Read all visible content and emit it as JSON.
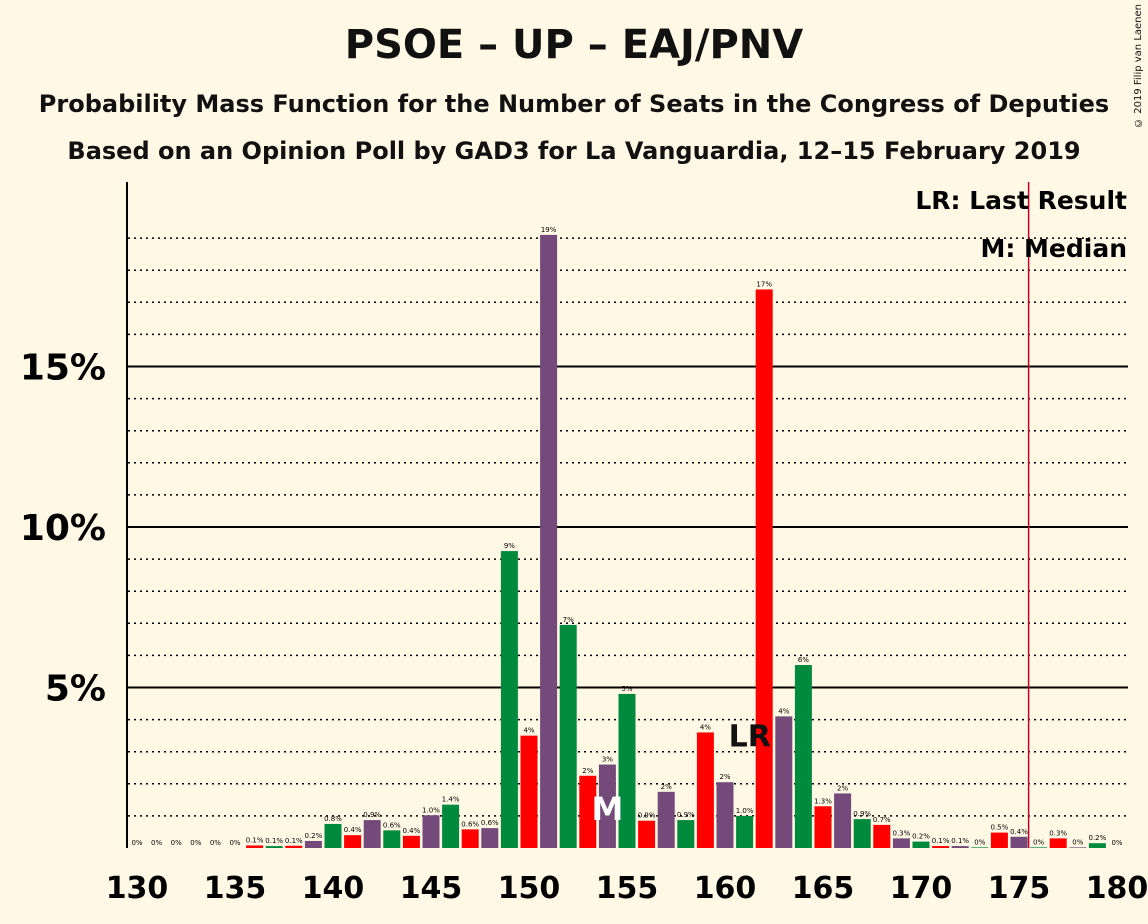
{
  "title": "PSOE – UP – EAJ/PNV",
  "subtitle1": "Probability Mass Function for the Number of Seats in the Congress of Deputies",
  "subtitle2": "Based on an Opinion Poll by GAD3 for La Vanguardia, 12–15 February 2019",
  "copyright": "© 2019 Filip van Laenen",
  "legend": {
    "lr": "LR: Last Result",
    "m": "M: Median"
  },
  "colors": {
    "red": "#ff0000",
    "green": "#008a3e",
    "purple": "#744a7b",
    "background": "#fff8e4",
    "majority_line": "#c0002a"
  },
  "chart_data": {
    "type": "bar",
    "xlabel": "",
    "ylabel": "",
    "ylim": [
      0,
      20.7
    ],
    "y_ticks": [
      {
        "value": 5,
        "label": "5%"
      },
      {
        "value": 10,
        "label": "10%"
      },
      {
        "value": 15,
        "label": "15%"
      }
    ],
    "x_ticks": [
      130,
      135,
      140,
      145,
      150,
      155,
      160,
      165,
      170,
      175,
      180
    ],
    "median": 154,
    "last_result": 161,
    "last_result_label": "LR",
    "median_label": "M",
    "majority_line": 176,
    "bars": [
      {
        "x": 130,
        "v": 0,
        "label": "0%",
        "c": "red"
      },
      {
        "x": 131,
        "v": 0,
        "label": "0%",
        "c": "green"
      },
      {
        "x": 132,
        "v": 0,
        "label": "0%",
        "c": "purple"
      },
      {
        "x": 133,
        "v": 0,
        "label": "0%",
        "c": "red"
      },
      {
        "x": 134,
        "v": 0,
        "label": "0%",
        "c": "green"
      },
      {
        "x": 135,
        "v": 0,
        "label": "0%",
        "c": "purple"
      },
      {
        "x": 136,
        "v": 0.08,
        "label": "0.1%",
        "c": "red"
      },
      {
        "x": 137,
        "v": 0.06,
        "label": "0.1%",
        "c": "green"
      },
      {
        "x": 138,
        "v": 0.07,
        "label": "0.1%",
        "c": "red"
      },
      {
        "x": 139,
        "v": 0.22,
        "label": "0.2%",
        "c": "purple"
      },
      {
        "x": 140,
        "v": 0.75,
        "label": "0.8%",
        "c": "green"
      },
      {
        "x": 141,
        "v": 0.4,
        "label": "0.4%",
        "c": "red"
      },
      {
        "x": 142,
        "v": 0.87,
        "label": "0.9%",
        "c": "purple"
      },
      {
        "x": 143,
        "v": 0.55,
        "label": "0.6%",
        "c": "green"
      },
      {
        "x": 144,
        "v": 0.38,
        "label": "0.4%",
        "c": "red"
      },
      {
        "x": 145,
        "v": 1.02,
        "label": "1.0%",
        "c": "purple"
      },
      {
        "x": 146,
        "v": 1.35,
        "label": "1.4%",
        "c": "green"
      },
      {
        "x": 147,
        "v": 0.58,
        "label": "0.6%",
        "c": "red"
      },
      {
        "x": 148,
        "v": 0.62,
        "label": "0.6%",
        "c": "purple"
      },
      {
        "x": 149,
        "v": 9.25,
        "label": "9%",
        "c": "green"
      },
      {
        "x": 150,
        "v": 3.5,
        "label": "4%",
        "c": "red"
      },
      {
        "x": 151,
        "v": 19.1,
        "label": "19%",
        "c": "purple"
      },
      {
        "x": 152,
        "v": 6.95,
        "label": "7%",
        "c": "green"
      },
      {
        "x": 153,
        "v": 2.25,
        "label": "2%",
        "c": "red"
      },
      {
        "x": 154,
        "v": 2.6,
        "label": "3%",
        "c": "purple"
      },
      {
        "x": 155,
        "v": 4.8,
        "label": "5%",
        "c": "green"
      },
      {
        "x": 156,
        "v": 0.85,
        "label": "0.9%",
        "c": "red"
      },
      {
        "x": 157,
        "v": 1.75,
        "label": "2%",
        "c": "purple"
      },
      {
        "x": 158,
        "v": 0.87,
        "label": "0.9%",
        "c": "green"
      },
      {
        "x": 159,
        "v": 3.6,
        "label": "4%",
        "c": "red"
      },
      {
        "x": 160,
        "v": 2.05,
        "label": "2%",
        "c": "purple"
      },
      {
        "x": 161,
        "v": 1.0,
        "label": "1.0%",
        "c": "green"
      },
      {
        "x": 162,
        "v": 17.4,
        "label": "17%",
        "c": "red"
      },
      {
        "x": 163,
        "v": 4.1,
        "label": "4%",
        "c": "purple"
      },
      {
        "x": 164,
        "v": 5.7,
        "label": "6%",
        "c": "green"
      },
      {
        "x": 165,
        "v": 1.3,
        "label": "1.3%",
        "c": "red"
      },
      {
        "x": 166,
        "v": 1.7,
        "label": "2%",
        "c": "purple"
      },
      {
        "x": 167,
        "v": 0.9,
        "label": "0.9%",
        "c": "green"
      },
      {
        "x": 168,
        "v": 0.72,
        "label": "0.7%",
        "c": "red"
      },
      {
        "x": 169,
        "v": 0.3,
        "label": "0.3%",
        "c": "purple"
      },
      {
        "x": 170,
        "v": 0.2,
        "label": "0.2%",
        "c": "green"
      },
      {
        "x": 171,
        "v": 0.06,
        "label": "0.1%",
        "c": "red"
      },
      {
        "x": 172,
        "v": 0.06,
        "label": "0.1%",
        "c": "purple"
      },
      {
        "x": 173,
        "v": 0.02,
        "label": "0%",
        "c": "green"
      },
      {
        "x": 174,
        "v": 0.48,
        "label": "0.5%",
        "c": "red"
      },
      {
        "x": 175,
        "v": 0.35,
        "label": "0.4%",
        "c": "purple"
      },
      {
        "x": 176,
        "v": 0.02,
        "label": "0%",
        "c": "green"
      },
      {
        "x": 177,
        "v": 0.3,
        "label": "0.3%",
        "c": "red"
      },
      {
        "x": 178,
        "v": 0.02,
        "label": "0%",
        "c": "purple"
      },
      {
        "x": 179,
        "v": 0.15,
        "label": "0.2%",
        "c": "green"
      },
      {
        "x": 180,
        "v": 0,
        "label": "0%",
        "c": "red"
      }
    ]
  }
}
